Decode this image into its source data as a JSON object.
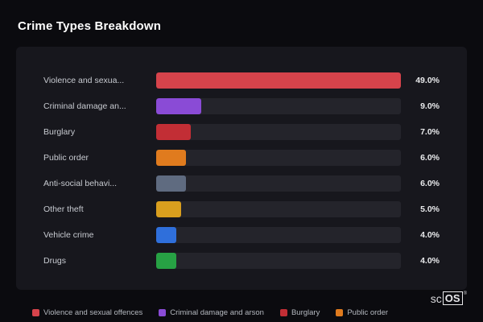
{
  "title": "Crime Types Breakdown",
  "chart_data": {
    "type": "bar",
    "orientation": "horizontal",
    "title": "Crime Types Breakdown",
    "categories": [
      "Violence and sexual offences",
      "Criminal damage and arson",
      "Burglary",
      "Public order",
      "Anti-social behaviour",
      "Other theft",
      "Vehicle crime",
      "Drugs"
    ],
    "display_labels": [
      "Violence and sexua...",
      "Criminal damage an...",
      "Burglary",
      "Public order",
      "Anti-social behavi...",
      "Other theft",
      "Vehicle crime",
      "Drugs"
    ],
    "values": [
      49.0,
      9.0,
      7.0,
      6.0,
      6.0,
      5.0,
      4.0,
      4.0
    ],
    "value_labels": [
      "49.0%",
      "9.0%",
      "7.0%",
      "6.0%",
      "6.0%",
      "5.0%",
      "4.0%",
      "4.0%"
    ],
    "colors": [
      "#d6434b",
      "#8a4bd6",
      "#c22e35",
      "#e07b1e",
      "#5f6b80",
      "#d99f1e",
      "#2f6fdb",
      "#27a144"
    ],
    "xlim": [
      0,
      49
    ],
    "unit": "%",
    "grid": false,
    "legend_position": "bottom"
  },
  "legend": {
    "items": [
      {
        "label": "Violence and sexual offences",
        "color": "#d6434b"
      },
      {
        "label": "Criminal damage and arson",
        "color": "#8a4bd6"
      },
      {
        "label": "Burglary",
        "color": "#c22e35"
      },
      {
        "label": "Public order",
        "color": "#e07b1e"
      }
    ]
  },
  "watermark": {
    "prefix": "sc",
    "box": "OS",
    "reg": "®"
  }
}
